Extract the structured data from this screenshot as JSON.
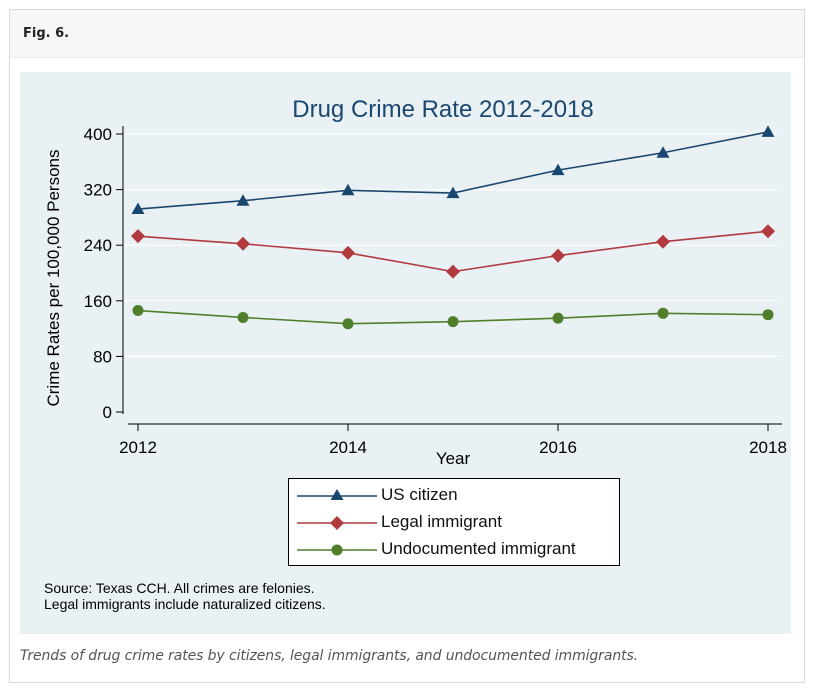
{
  "figure": {
    "label": "Fig. 6.",
    "caption": "Trends of drug crime rates by citizens, legal immigrants, and undocumented immigrants.",
    "source_line_1": "Source: Texas CCH. All crimes are felonies.",
    "source_line_2": "Legal immigrants include naturalized citizens."
  },
  "chart_data": {
    "type": "line",
    "title": "Drug Crime Rate 2012-2018",
    "xlabel": "Year",
    "ylabel": "Crime Rates per 100,000 Persons",
    "x": [
      2012,
      2013,
      2014,
      2015,
      2016,
      2017,
      2018
    ],
    "xticks": [
      "2012",
      "2014",
      "2016",
      "2018"
    ],
    "yticks": [
      "0",
      "80",
      "160",
      "240",
      "320",
      "400"
    ],
    "xlim": [
      2012,
      2018
    ],
    "ylim": [
      0,
      400
    ],
    "grid": true,
    "legend_position": "bottom",
    "series": [
      {
        "name": "US citizen",
        "color": "#1a476f",
        "marker": "triangle",
        "values": [
          292,
          304,
          319,
          315,
          348,
          373,
          403
        ]
      },
      {
        "name": "Legal immigrant",
        "color": "#b03a3e",
        "marker": "diamond",
        "values": [
          253,
          242,
          229,
          202,
          225,
          245,
          260
        ]
      },
      {
        "name": "Undocumented immigrant",
        "color": "#4f7f2a",
        "marker": "circle",
        "values": [
          146,
          136,
          127,
          130,
          135,
          142,
          140
        ]
      }
    ]
  }
}
